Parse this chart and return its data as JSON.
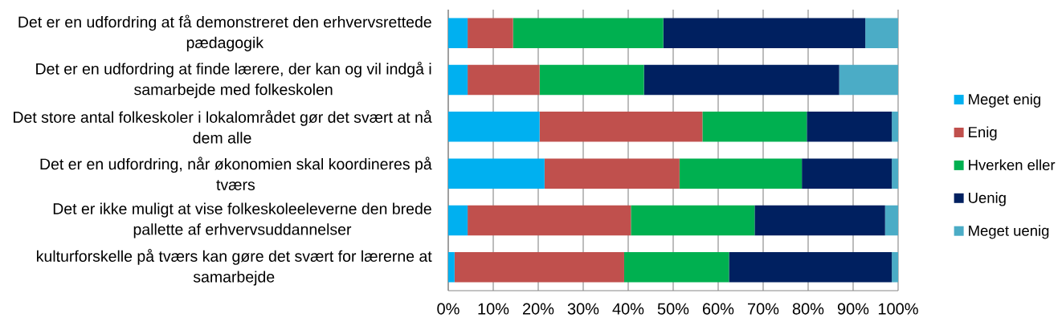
{
  "chart_data": {
    "type": "bar",
    "orientation": "horizontal",
    "stacked": true,
    "categories": [
      "Det er en udfordring at få demonstreret den erhvervsrettede pædagogik",
      "Det er en udfordring at finde lærere, der kan og vil indgå i samarbejde med folkeskolen",
      "Det store antal folkeskoler i lokalområdet gør det svært at nå dem alle",
      "Det er en udfordring, når økonomien skal koordineres på tværs",
      "Det er ikke muligt at vise folkeskoleeleverne den brede pallette af erhvervsuddannelser",
      "kulturforskelle på tværs kan gøre det svært for lærerne at samarbejde"
    ],
    "series": [
      {
        "name": "Meget enig",
        "color": "#00b0f0",
        "values": [
          4.3,
          4.3,
          20.3,
          21.4,
          4.3,
          1.4
        ]
      },
      {
        "name": "Enig",
        "color": "#c0504d",
        "values": [
          10.1,
          16.0,
          36.2,
          30.0,
          36.3,
          37.7
        ]
      },
      {
        "name": "Hverken eller",
        "color": "#00b050",
        "values": [
          33.4,
          23.2,
          23.2,
          27.2,
          27.5,
          23.3
        ]
      },
      {
        "name": "Uenig",
        "color": "#002060",
        "values": [
          44.9,
          43.4,
          18.9,
          20.0,
          29.0,
          36.2
        ]
      },
      {
        "name": "Meget uenig",
        "color": "#4bacc6",
        "values": [
          7.3,
          13.1,
          1.4,
          1.4,
          2.9,
          1.4
        ]
      }
    ],
    "xlim": [
      0,
      100
    ],
    "xticks": [
      {
        "value": 0,
        "label": "0%"
      },
      {
        "value": 10,
        "label": "10%"
      },
      {
        "value": 20,
        "label": "20%"
      },
      {
        "value": 30,
        "label": "30%"
      },
      {
        "value": 40,
        "label": "40%"
      },
      {
        "value": 50,
        "label": "50%"
      },
      {
        "value": 60,
        "label": "60%"
      },
      {
        "value": 70,
        "label": "70%"
      },
      {
        "value": 80,
        "label": "80%"
      },
      {
        "value": 90,
        "label": "90%"
      },
      {
        "value": 100,
        "label": "100%"
      }
    ],
    "grid": "x",
    "legend": "right"
  }
}
